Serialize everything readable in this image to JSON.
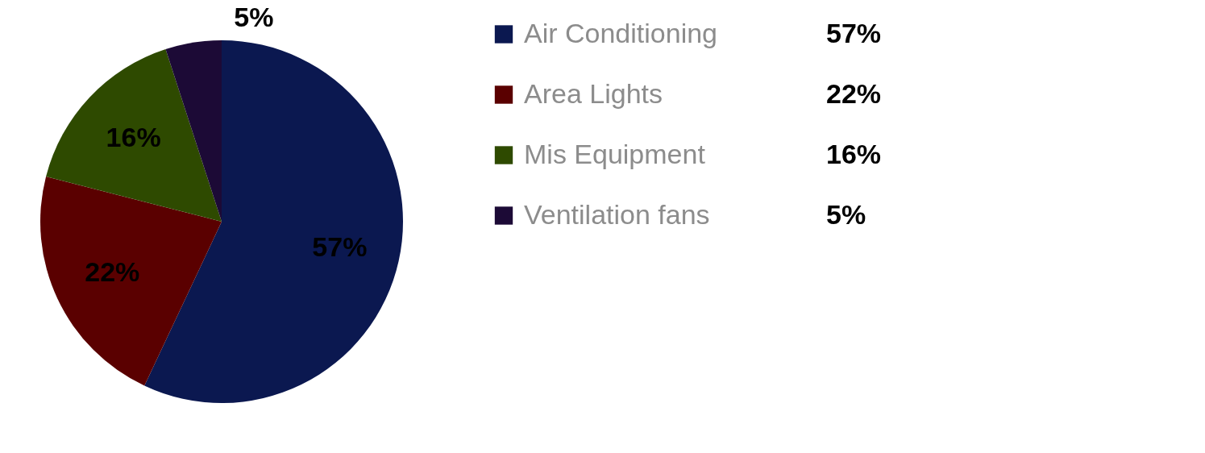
{
  "chart_data": {
    "type": "pie",
    "categories": [
      "Air Conditioning",
      "Area Lights",
      "Mis Equipment",
      "Ventilation fans"
    ],
    "values": [
      57,
      22,
      16,
      5
    ],
    "colors": [
      "#0b1850",
      "#5a0000",
      "#2e4a00",
      "#1c0a36"
    ],
    "value_labels": [
      "57%",
      "22%",
      "16%",
      "5%"
    ],
    "legend": "right"
  }
}
